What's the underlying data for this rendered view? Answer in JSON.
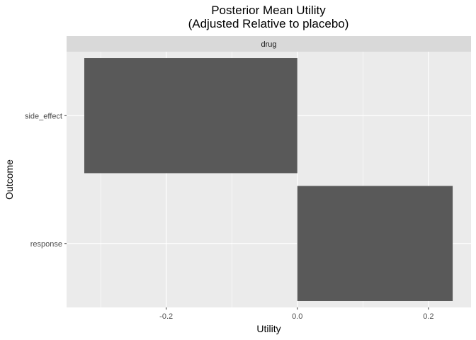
{
  "chart_data": {
    "type": "bar",
    "orientation": "horizontal",
    "title": "Posterior Mean Utility",
    "subtitle": "(Adjusted Relative to placebo)",
    "facet": "drug",
    "xlabel": "Utility",
    "ylabel": "Outcome",
    "categories": [
      "side_effect",
      "response"
    ],
    "values": [
      -0.325,
      0.237
    ],
    "xlim": [
      -0.352,
      0.265
    ],
    "x_ticks": [
      -0.2,
      0.0,
      0.2
    ],
    "x_tick_labels": [
      "-0.2",
      "0.0",
      "0.2"
    ],
    "grid": true,
    "legend": "none",
    "colors": {
      "bar": "#595959",
      "panel": "#ebebeb",
      "strip": "#d9d9d9",
      "grid": "#ffffff"
    }
  }
}
